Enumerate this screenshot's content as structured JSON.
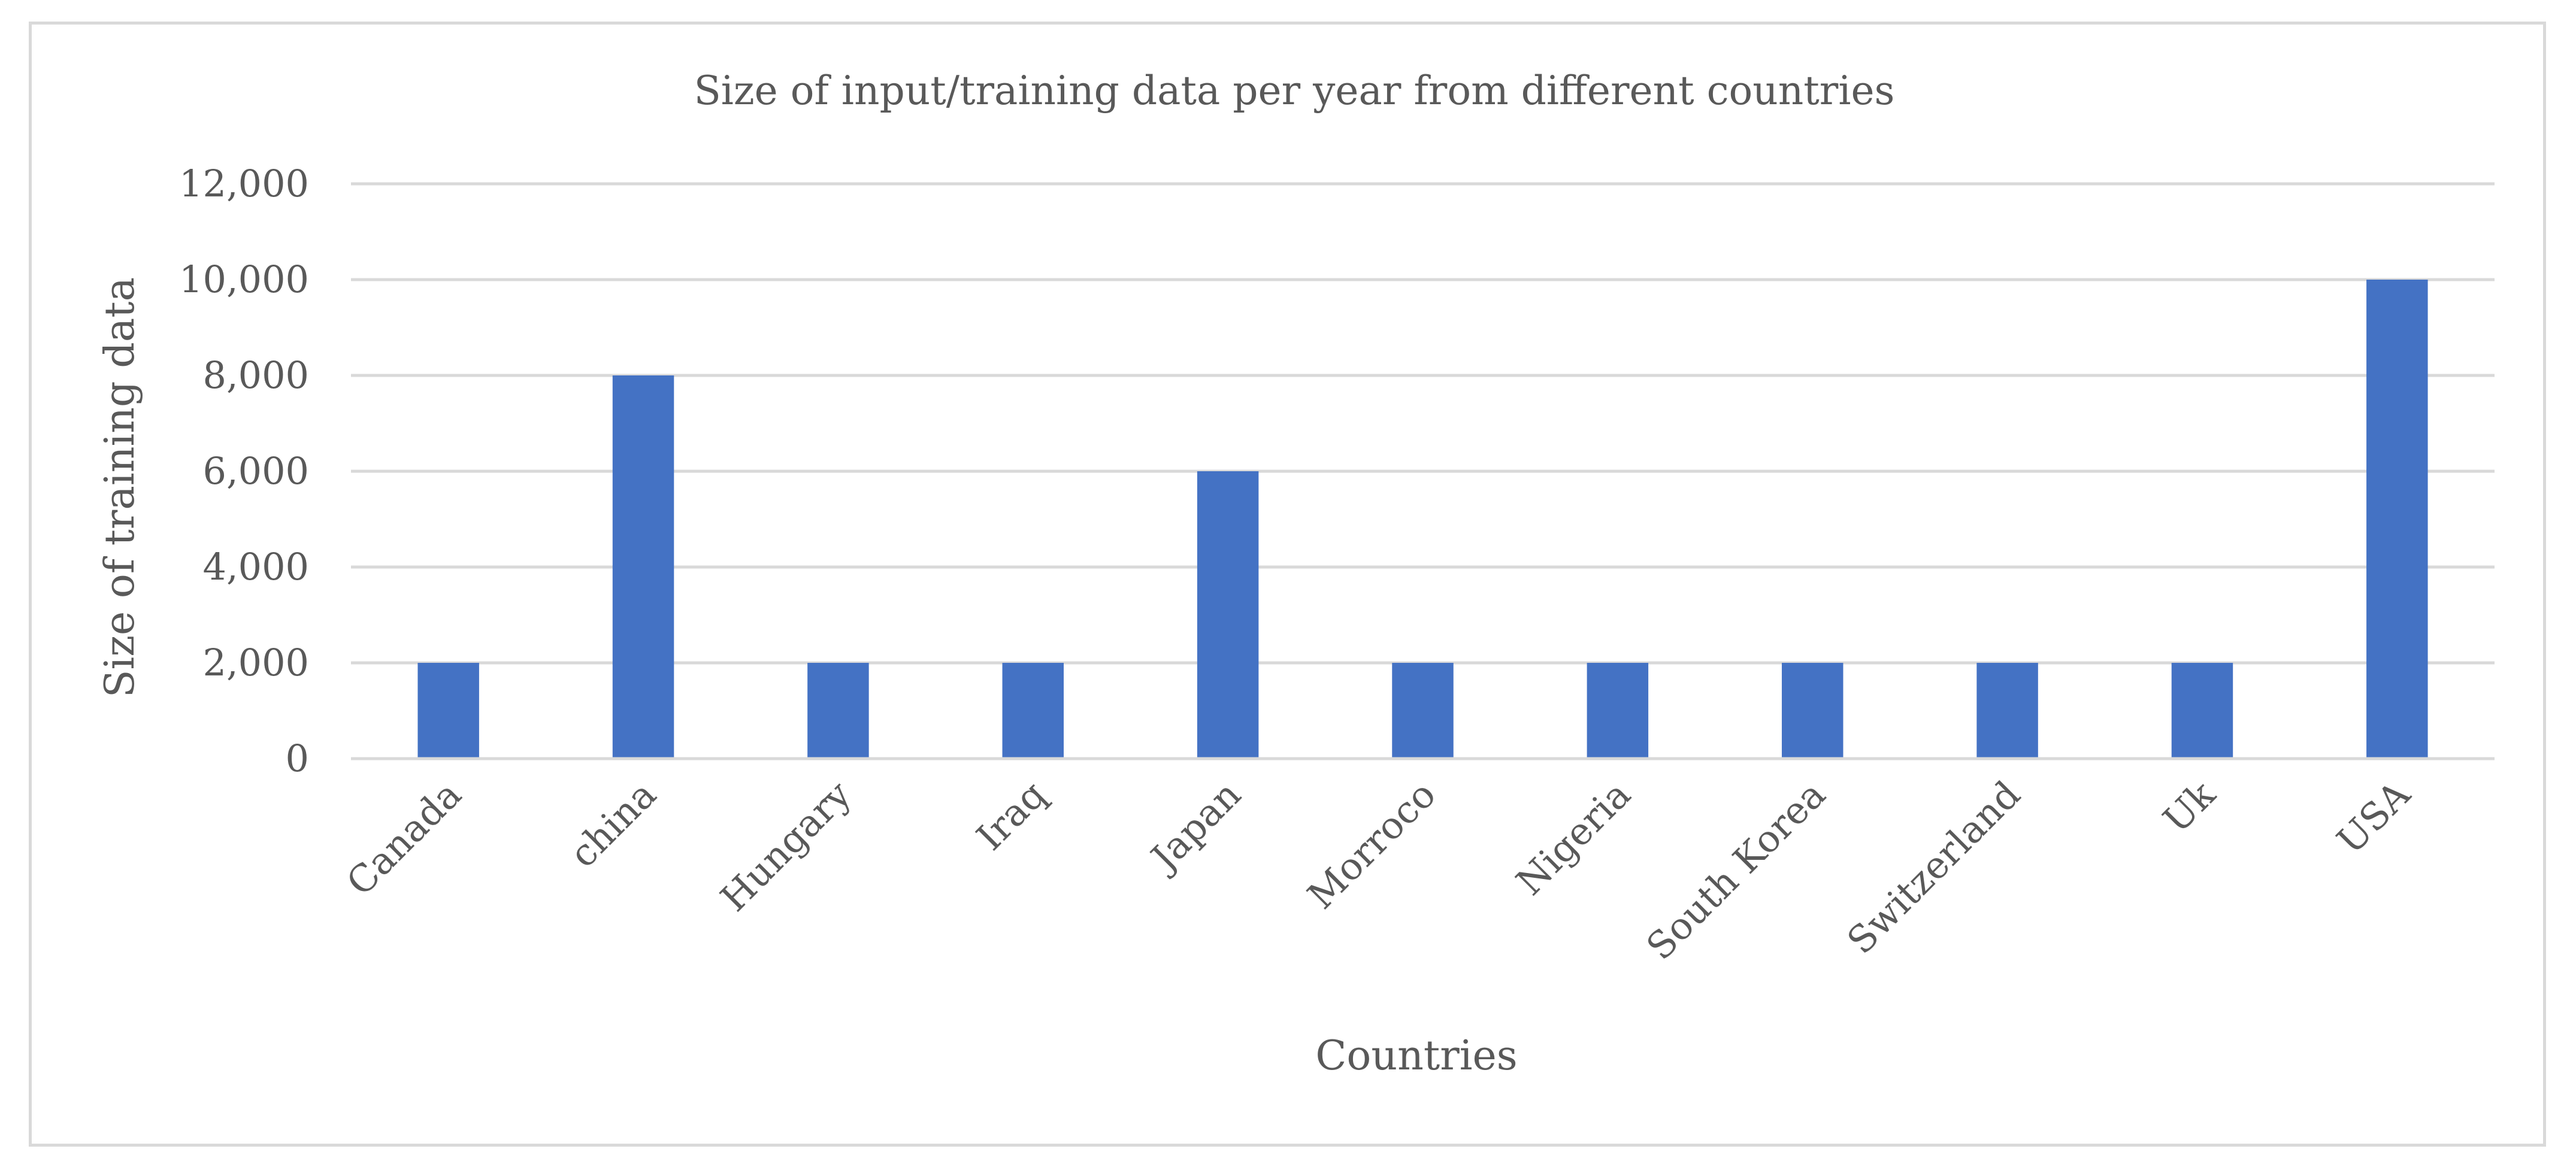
{
  "chart_data": {
    "type": "bar",
    "title": "Size of input/training data per year from different countries",
    "xlabel": "Countries",
    "ylabel": "Size of training data",
    "categories": [
      "Canada",
      "china",
      "Hungary",
      "Iraq",
      "Japan",
      "Morroco",
      "Nigeria",
      "South Korea",
      "Switzerland",
      "Uk",
      "USA"
    ],
    "series": [
      {
        "name": "Size of training data",
        "values": [
          2000,
          8000,
          2000,
          2000,
          6000,
          2000,
          2000,
          2000,
          2000,
          2000,
          10000
        ]
      }
    ],
    "ylim": [
      0,
      12000
    ],
    "yticks": [
      0,
      2000,
      4000,
      6000,
      8000,
      10000,
      12000
    ],
    "ytick_labels": [
      "0",
      "2,000",
      "4,000",
      "6,000",
      "8,000",
      "10,000",
      "12,000"
    ],
    "grid": true,
    "legend": "none",
    "bar_color": "#4472C4"
  }
}
